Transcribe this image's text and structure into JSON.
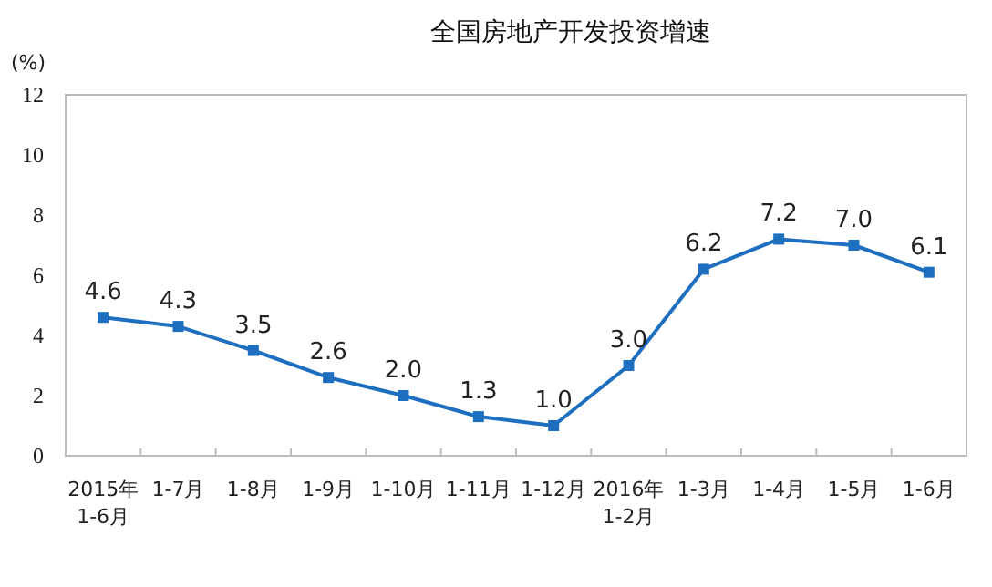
{
  "chart_data": {
    "type": "line",
    "title": "全国房地产开发投资增速",
    "ylabel": "(%)",
    "categories": [
      "2015年\n1-6月",
      "1-7月",
      "1-8月",
      "1-9月",
      "1-10月",
      "1-11月",
      "1-12月",
      "2016年\n1-2月",
      "1-3月",
      "1-4月",
      "1-5月",
      "1-6月"
    ],
    "series": [
      {
        "color": "#1f6fc0",
        "values": [
          4.6,
          4.3,
          3.5,
          2.6,
          2.0,
          1.3,
          1.0,
          3.0,
          6.2,
          7.2,
          7.0,
          6.1
        ],
        "value_labels": [
          "4.6",
          "4.3",
          "3.5",
          "2.6",
          "2.0",
          "1.3",
          "1.0",
          "3.0",
          "6.2",
          "7.2",
          "7.0",
          "6.1"
        ]
      }
    ],
    "ylim": [
      0,
      12
    ],
    "yticks": [
      0,
      2,
      4,
      6,
      8,
      10,
      12
    ],
    "grid": false,
    "marker": "square",
    "line_style": "solid"
  }
}
